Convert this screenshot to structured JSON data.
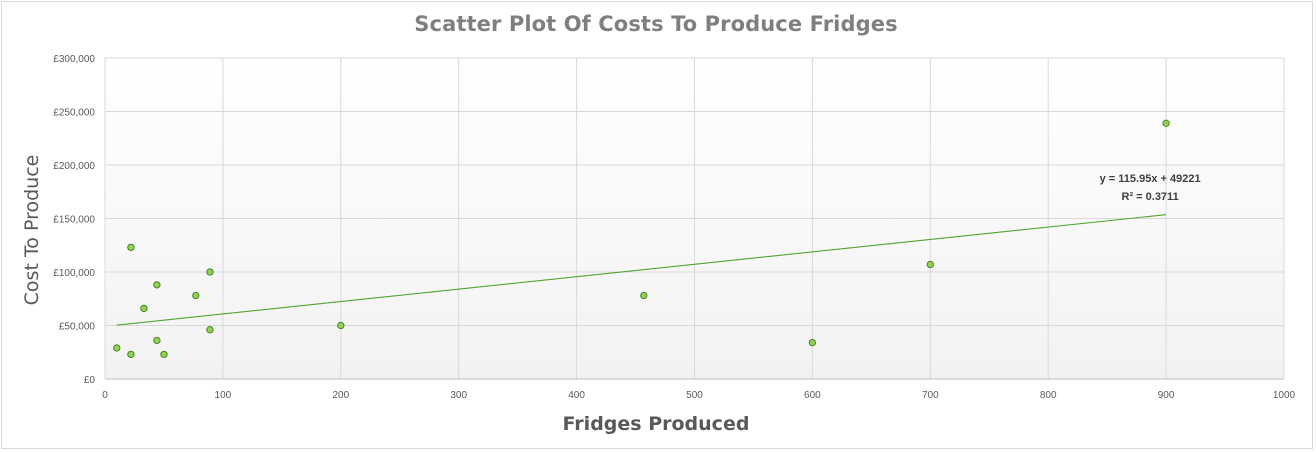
{
  "chart_data": {
    "type": "scatter",
    "title": "Scatter Plot Of Costs To Produce Fridges",
    "xlabel": "Fridges Produced",
    "ylabel": "Cost To Produce",
    "xlim": [
      0,
      1000
    ],
    "ylim": [
      0,
      300000
    ],
    "x_ticks": [
      "0",
      "100",
      "200",
      "300",
      "400",
      "500",
      "600",
      "700",
      "800",
      "900",
      "1000"
    ],
    "y_ticks": [
      "£0",
      "£50,000",
      "£100,000",
      "£150,000",
      "£200,000",
      "£250,000",
      "£300,000"
    ],
    "grid": true,
    "legend": "none",
    "points": [
      {
        "x": 10,
        "y": 29000
      },
      {
        "x": 22,
        "y": 123000
      },
      {
        "x": 22,
        "y": 23000
      },
      {
        "x": 33,
        "y": 66000
      },
      {
        "x": 44,
        "y": 88000
      },
      {
        "x": 44,
        "y": 36000
      },
      {
        "x": 50,
        "y": 23000
      },
      {
        "x": 77,
        "y": 78000
      },
      {
        "x": 89,
        "y": 100000
      },
      {
        "x": 89,
        "y": 46000
      },
      {
        "x": 200,
        "y": 50000
      },
      {
        "x": 457,
        "y": 78000
      },
      {
        "x": 600,
        "y": 34000
      },
      {
        "x": 700,
        "y": 107000
      },
      {
        "x": 900,
        "y": 239000
      }
    ],
    "trendline": {
      "type": "linear",
      "slope": 115.95,
      "intercept": 49221,
      "x_range": [
        10,
        900
      ],
      "equation": "y = 115.95x + 49221",
      "r2_label": "R² = 0.3711"
    },
    "colors": {
      "marker_fill": "#92d050",
      "marker_stroke": "#3a7d22",
      "trendline": "#4ea72e",
      "grid": "#d9d9d9",
      "plot_bg_bottom": "#f2f2f2"
    }
  }
}
